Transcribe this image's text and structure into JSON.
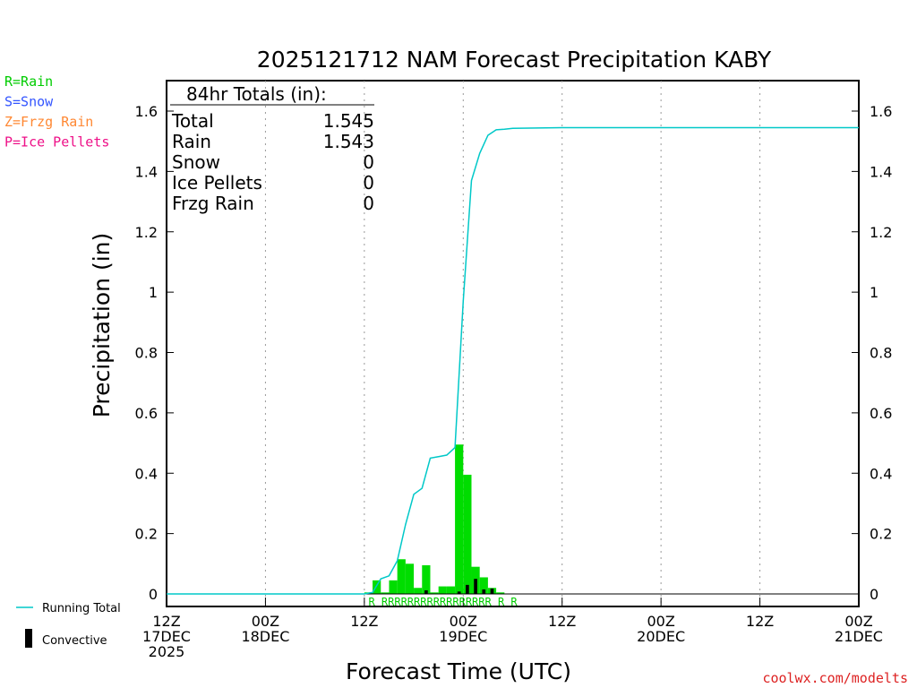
{
  "chart_data": {
    "type": "bar",
    "title": "2025121712 NAM Forecast Precipitation KABY",
    "xlabel": "Forecast Time (UTC)",
    "ylabel": "Precipitation (in)",
    "ylim": [
      -0.04,
      1.7
    ],
    "y_ticks": [
      0,
      0.2,
      0.4,
      0.6,
      0.8,
      1,
      1.2,
      1.4,
      1.6
    ],
    "y_tick_labels": [
      "0",
      "0.2",
      "0.4",
      "0.6",
      "0.8",
      "1",
      "1.2",
      "1.4",
      "1.6"
    ],
    "x_range_hours": [
      0,
      84
    ],
    "x_ticks": [
      {
        "hour": 0,
        "lines": [
          "12Z",
          "17DEC",
          "2025"
        ]
      },
      {
        "hour": 12,
        "lines": [
          "00Z",
          "18DEC"
        ]
      },
      {
        "hour": 24,
        "lines": [
          "12Z"
        ]
      },
      {
        "hour": 36,
        "lines": [
          "00Z",
          "19DEC"
        ]
      },
      {
        "hour": 48,
        "lines": [
          "12Z"
        ]
      },
      {
        "hour": 60,
        "lines": [
          "00Z",
          "20DEC"
        ]
      },
      {
        "hour": 72,
        "lines": [
          "12Z"
        ]
      },
      {
        "hour": 84,
        "lines": [
          "00Z",
          "21DEC"
        ]
      }
    ],
    "grid": "vertical dotted",
    "series": [
      {
        "name": "Running Total",
        "color": "#00c8c8",
        "kind": "line",
        "x": [
          0,
          24,
          25,
          26,
          27,
          28,
          29,
          30,
          31,
          32,
          33,
          34,
          35,
          36,
          37,
          38,
          39,
          40,
          41,
          42,
          48,
          84
        ],
        "y": [
          0,
          0,
          0.005,
          0.05,
          0.06,
          0.11,
          0.23,
          0.33,
          0.35,
          0.45,
          0.455,
          0.46,
          0.485,
          0.97,
          1.37,
          1.46,
          1.52,
          1.538,
          1.54,
          1.543,
          1.545,
          1.545
        ]
      },
      {
        "name": "Rain",
        "color": "#00dd00",
        "kind": "bar",
        "x": [
          25,
          26,
          27,
          28,
          29,
          30,
          31,
          32,
          33,
          34,
          35,
          36,
          37,
          38,
          39,
          40,
          41
        ],
        "y": [
          0.005,
          0.045,
          0.005,
          0.045,
          0.115,
          0.1,
          0.02,
          0.095,
          0.005,
          0.025,
          0.025,
          0.495,
          0.395,
          0.09,
          0.055,
          0.02,
          0.005
        ]
      },
      {
        "name": "Convective",
        "color": "#000000",
        "kind": "bar",
        "x": [
          32,
          36,
          37,
          38,
          39,
          40
        ],
        "y": [
          0.012,
          0.008,
          0.03,
          0.05,
          0.015,
          0.018
        ]
      }
    ],
    "ptype_row": {
      "text": "R RRRRRRRRRRRRRRRRR R R",
      "color": "#00cc00"
    },
    "legend_top_left": [
      {
        "text": "R=Rain",
        "color": "#00cc00"
      },
      {
        "text": "S=Snow",
        "color": "#3355ff"
      },
      {
        "text": "Z=Frzg Rain",
        "color": "#ff8833"
      },
      {
        "text": "P=Ice Pellets",
        "color": "#ee1188"
      }
    ],
    "legend_bottom_left": [
      {
        "text": "Running Total",
        "color": "#00c8c8"
      },
      {
        "text": "Convective",
        "color": "#000000"
      }
    ],
    "totals_box": {
      "title": "84hr Totals (in):",
      "rows": [
        {
          "label": "Total",
          "value": "1.545"
        },
        {
          "label": "Rain",
          "value": "1.543"
        },
        {
          "label": "Snow",
          "value": "0"
        },
        {
          "label": "Ice Pellets",
          "value": "0"
        },
        {
          "label": "Frzg Rain",
          "value": "0"
        }
      ]
    },
    "credit": "coolwx.com/modelts"
  }
}
